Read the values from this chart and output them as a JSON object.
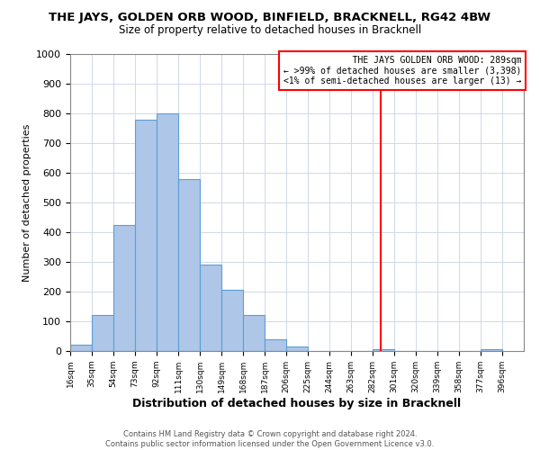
{
  "title": "THE JAYS, GOLDEN ORB WOOD, BINFIELD, BRACKNELL, RG42 4BW",
  "subtitle": "Size of property relative to detached houses in Bracknell",
  "xlabel": "Distribution of detached houses by size in Bracknell",
  "ylabel": "Number of detached properties",
  "bin_edges": [
    16,
    35,
    54,
    73,
    92,
    111,
    130,
    149,
    168,
    187,
    206,
    225,
    244,
    263,
    282,
    301,
    320,
    339,
    358,
    377,
    396
  ],
  "bin_heights": [
    20,
    120,
    425,
    780,
    800,
    580,
    290,
    205,
    120,
    40,
    15,
    0,
    0,
    0,
    5,
    0,
    0,
    0,
    0,
    5
  ],
  "bar_color": "#aec6e8",
  "bar_edge_color": "#5a9fd4",
  "property_line_x": 289,
  "annotation_line1": "   THE JAYS GOLDEN ORB WOOD: 289sqm",
  "annotation_line2": "← >99% of detached houses are smaller (3,398)",
  "annotation_line3": "<1% of semi-detached houses are larger (13) →",
  "ylim": [
    0,
    1000
  ],
  "tick_labels": [
    "16sqm",
    "35sqm",
    "54sqm",
    "73sqm",
    "92sqm",
    "111sqm",
    "130sqm",
    "149sqm",
    "168sqm",
    "187sqm",
    "206sqm",
    "225sqm",
    "244sqm",
    "263sqm",
    "282sqm",
    "301sqm",
    "320sqm",
    "339sqm",
    "358sqm",
    "377sqm",
    "396sqm"
  ],
  "footer_line1": "Contains HM Land Registry data © Crown copyright and database right 2024.",
  "footer_line2": "Contains public sector information licensed under the Open Government Licence v3.0.",
  "background_color": "#ffffff",
  "grid_color": "#d0d8e8"
}
